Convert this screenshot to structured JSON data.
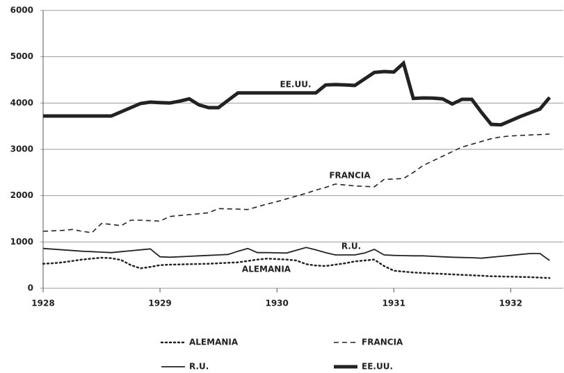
{
  "chart_data": {
    "type": "line",
    "x": [
      1928,
      1928.083,
      1928.167,
      1928.25,
      1928.333,
      1928.417,
      1928.5,
      1928.583,
      1928.667,
      1928.75,
      1928.833,
      1928.917,
      1929,
      1929.083,
      1929.167,
      1929.25,
      1929.333,
      1929.417,
      1929.5,
      1929.583,
      1929.667,
      1929.75,
      1929.833,
      1929.917,
      1930,
      1930.083,
      1930.167,
      1930.25,
      1930.333,
      1930.417,
      1930.5,
      1930.583,
      1930.667,
      1930.75,
      1930.833,
      1930.917,
      1931,
      1931.083,
      1931.167,
      1931.25,
      1931.333,
      1931.417,
      1931.5,
      1931.583,
      1931.667,
      1931.75,
      1931.833,
      1931.917,
      1932,
      1932.083,
      1932.167,
      1932.25,
      1932.333
    ],
    "series": [
      {
        "name": "ALEMANIA",
        "color": "#222222",
        "linestyle": "dotted",
        "linewidth": 2.5,
        "values": [
          530,
          540,
          560,
          590,
          620,
          640,
          660,
          650,
          610,
          500,
          430,
          460,
          500,
          510,
          515,
          520,
          525,
          530,
          540,
          550,
          560,
          590,
          620,
          640,
          630,
          620,
          600,
          520,
          490,
          480,
          510,
          540,
          580,
          600,
          620,
          480,
          380,
          360,
          340,
          330,
          320,
          310,
          300,
          290,
          280,
          270,
          260,
          255,
          250,
          245,
          240,
          230,
          220
        ]
      },
      {
        "name": "FRANCIA",
        "color": "#222222",
        "linestyle": "dashed",
        "linewidth": 1.6,
        "values": [
          1230,
          1240,
          1250,
          1270,
          1230,
          1200,
          1400,
          1380,
          1350,
          1470,
          1470,
          1460,
          1450,
          1550,
          1570,
          1590,
          1610,
          1630,
          1720,
          1715,
          1710,
          1700,
          1760,
          1820,
          1870,
          1930,
          1990,
          2050,
          2120,
          2180,
          2250,
          2230,
          2210,
          2200,
          2190,
          2350,
          2360,
          2370,
          2500,
          2650,
          2750,
          2850,
          2950,
          3050,
          3110,
          3170,
          3230,
          3270,
          3290,
          3300,
          3310,
          3320,
          3330
        ]
      },
      {
        "name": "R.U.",
        "color": "#222222",
        "linestyle": "solid",
        "linewidth": 1.8,
        "values": [
          860,
          845,
          830,
          815,
          800,
          790,
          780,
          770,
          790,
          810,
          830,
          850,
          680,
          670,
          680,
          690,
          700,
          710,
          720,
          730,
          800,
          860,
          770,
          770,
          765,
          760,
          820,
          880,
          830,
          770,
          720,
          720,
          720,
          760,
          840,
          720,
          710,
          705,
          700,
          700,
          690,
          680,
          670,
          665,
          660,
          650,
          670,
          690,
          710,
          730,
          750,
          750,
          600
        ]
      },
      {
        "name": "EE.UU.",
        "color": "#222222",
        "linestyle": "solid",
        "linewidth": 5,
        "values": [
          3720,
          3720,
          3720,
          3720,
          3720,
          3720,
          3720,
          3720,
          3810,
          3900,
          3990,
          4020,
          4010,
          4000,
          4040,
          4090,
          3960,
          3900,
          3900,
          4060,
          4220,
          4220,
          4220,
          4220,
          4220,
          4220,
          4220,
          4220,
          4220,
          4390,
          4400,
          4390,
          4380,
          4520,
          4660,
          4680,
          4670,
          4860,
          4100,
          4110,
          4105,
          4090,
          3980,
          4080,
          4080,
          3800,
          3540,
          3530,
          3620,
          3710,
          3790,
          3870,
          4120
        ]
      }
    ],
    "annotations": [
      "EE.UU.",
      "FRANCIA",
      "R.U.",
      "ALEMANIA"
    ],
    "xlim": [
      1928,
      1932.45
    ],
    "ylim": [
      0,
      6000
    ],
    "xticks": [
      1928,
      1929,
      1930,
      1931,
      1932
    ],
    "yticks": [
      0,
      1000,
      2000,
      3000,
      4000,
      5000,
      6000
    ],
    "grid": true,
    "legend": "bottom"
  }
}
